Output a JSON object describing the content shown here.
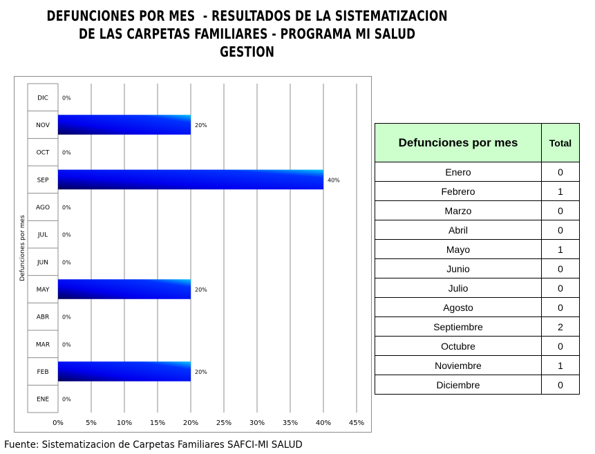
{
  "title_lines": [
    "DEFUNCIONES POR MES  - RESULTADOS DE LA SISTEMATIZACION",
    "DE LAS CARPETAS FAMILIARES - PROGRAMA MI SALUD",
    "GESTION"
  ],
  "source_text": "Fuente: Sistematizacion de Carpetas Familiares SAFCI-MI SALUD",
  "chart_data": {
    "type": "bar",
    "orientation": "horizontal",
    "categories": [
      "ENE",
      "FEB",
      "MAR",
      "ABR",
      "MAY",
      "JUN",
      "JUL",
      "AGO",
      "SEP",
      "OCT",
      "NOV",
      "DIC"
    ],
    "values": [
      0,
      20,
      0,
      0,
      20,
      0,
      0,
      0,
      40,
      0,
      20,
      0
    ],
    "data_labels": [
      "0%",
      "20%",
      "0%",
      "0%",
      "20%",
      "0%",
      "0%",
      "0%",
      "40%",
      "0%",
      "20%",
      "0%"
    ],
    "xticks": [
      "0%",
      "5%",
      "10%",
      "15%",
      "20%",
      "25%",
      "30%",
      "35%",
      "40%",
      "45%"
    ],
    "xlim": [
      0,
      45
    ],
    "ylabel": "Defunciones por mes",
    "grid": true,
    "bar_colors": [
      "#00005a",
      "#0000ff",
      "#00bfff"
    ]
  },
  "table": {
    "headers": [
      "Defunciones por mes",
      "Total"
    ],
    "rows": [
      [
        "Enero",
        "0"
      ],
      [
        "Febrero",
        "1"
      ],
      [
        "Marzo",
        "0"
      ],
      [
        "Abril",
        "0"
      ],
      [
        "Mayo",
        "1"
      ],
      [
        "Junio",
        "0"
      ],
      [
        "Julio",
        "0"
      ],
      [
        "Agosto",
        "0"
      ],
      [
        "Septiembre",
        "2"
      ],
      [
        "Octubre",
        "0"
      ],
      [
        "Noviembre",
        "1"
      ],
      [
        "Diciembre",
        "0"
      ]
    ],
    "header_bg": "#ccffcc"
  }
}
